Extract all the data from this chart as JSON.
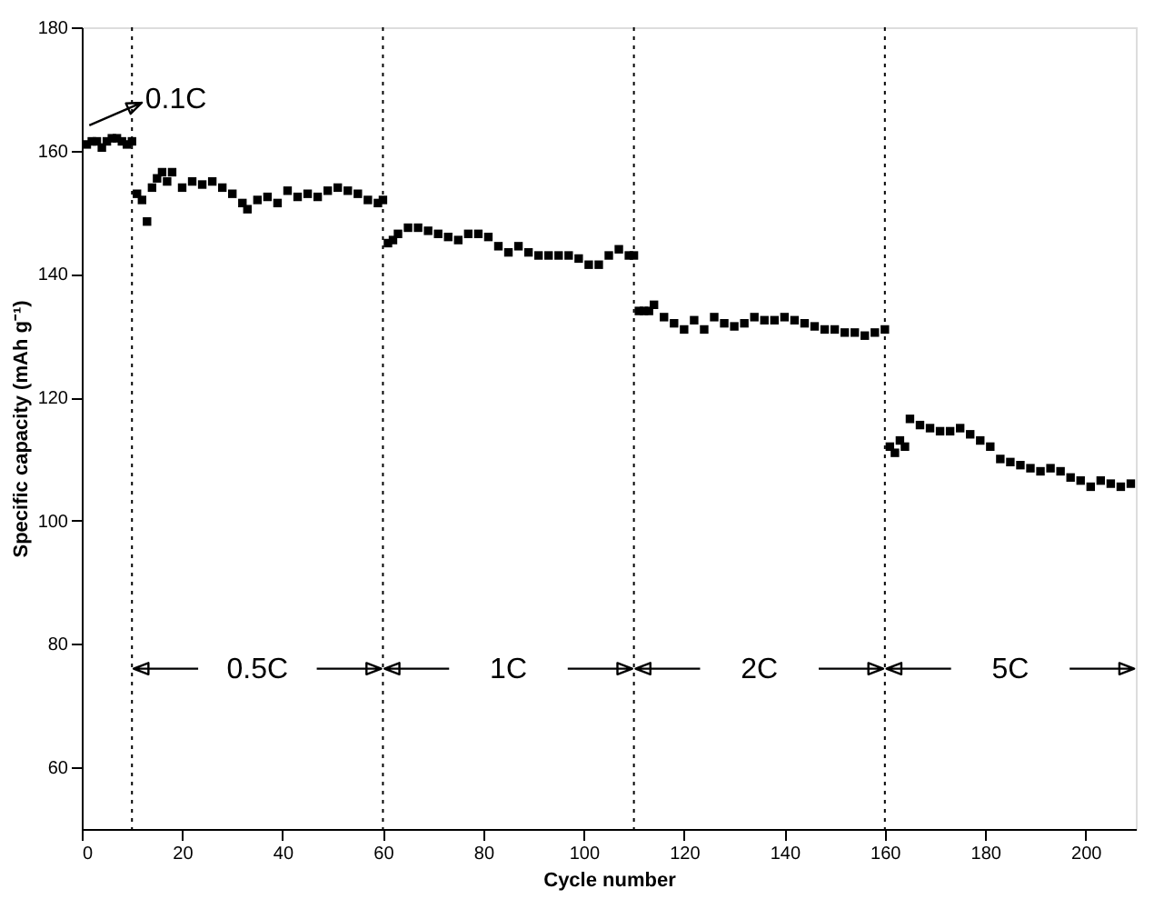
{
  "chart_data": {
    "type": "scatter",
    "xlabel": "Cycle number",
    "ylabel": "Specific capacity (mAh g⁻¹)",
    "marker": "square",
    "grid": false,
    "xlim": [
      0,
      210
    ],
    "ylim": [
      50,
      180
    ],
    "xticks": [
      0,
      20,
      40,
      60,
      80,
      100,
      120,
      140,
      160,
      180,
      200
    ],
    "yticks": [
      60,
      80,
      100,
      120,
      140,
      160,
      180
    ],
    "series": [
      {
        "color": "#000000",
        "x": [
          1,
          2,
          3,
          4,
          5,
          6,
          7,
          8,
          9,
          10,
          11,
          12,
          13,
          14,
          15,
          16,
          17,
          18,
          20,
          22,
          24,
          26,
          28,
          30,
          32,
          33,
          35,
          37,
          39,
          41,
          43,
          45,
          47,
          49,
          51,
          53,
          55,
          57,
          59,
          60,
          61,
          62,
          63,
          65,
          67,
          69,
          71,
          73,
          75,
          77,
          79,
          81,
          83,
          85,
          87,
          89,
          91,
          93,
          95,
          97,
          99,
          101,
          103,
          105,
          107,
          109,
          110,
          111,
          112,
          113,
          114,
          116,
          118,
          120,
          122,
          124,
          126,
          128,
          130,
          132,
          134,
          136,
          138,
          140,
          142,
          144,
          146,
          148,
          150,
          152,
          154,
          156,
          158,
          160,
          161,
          162,
          163,
          164,
          165,
          167,
          169,
          171,
          173,
          175,
          177,
          179,
          181,
          183,
          185,
          187,
          189,
          191,
          193,
          195,
          197,
          199,
          201,
          203,
          205,
          207,
          209
        ],
        "values": [
          161,
          161.5,
          161.5,
          160.5,
          161.5,
          162,
          162,
          161.5,
          161,
          161.5,
          153,
          152,
          148.5,
          154,
          155.5,
          156.5,
          155,
          156.5,
          154,
          155,
          154.5,
          155,
          154,
          153,
          151.5,
          150.5,
          152,
          152.5,
          151.5,
          153.5,
          152.5,
          153,
          152.5,
          153.5,
          154,
          153.5,
          153,
          152,
          151.5,
          152,
          145,
          145.5,
          146.5,
          147.5,
          147.5,
          147,
          146.5,
          146,
          145.5,
          146.5,
          146.5,
          146,
          144.5,
          143.5,
          144.5,
          143.5,
          143,
          143,
          143,
          143,
          142.5,
          141.5,
          141.5,
          143,
          144,
          143,
          143,
          134,
          134,
          134,
          135,
          133,
          132,
          131,
          132.5,
          131,
          133,
          132,
          131.5,
          132,
          133,
          132.5,
          132.5,
          133,
          132.5,
          132,
          131.5,
          131,
          131,
          130.5,
          130.5,
          130,
          130.5,
          131,
          112,
          111,
          113,
          112,
          116.5,
          115.5,
          115,
          114.5,
          114.5,
          115,
          114,
          113,
          112,
          110,
          109.5,
          109,
          108.5,
          108,
          108.5,
          108,
          107,
          106.5,
          105.5,
          106.5,
          106,
          105.5,
          106
        ]
      }
    ],
    "ref_lines": [
      {
        "axis": "x",
        "value": 10,
        "line_style": "dotted"
      },
      {
        "axis": "x",
        "value": 60,
        "line_style": "dotted"
      },
      {
        "axis": "x",
        "value": 110,
        "line_style": "dotted"
      },
      {
        "axis": "x",
        "value": 160,
        "line_style": "dotted"
      }
    ],
    "annotations": [
      "0.1C",
      "0.5C",
      "1C",
      "2C",
      "5C"
    ]
  }
}
